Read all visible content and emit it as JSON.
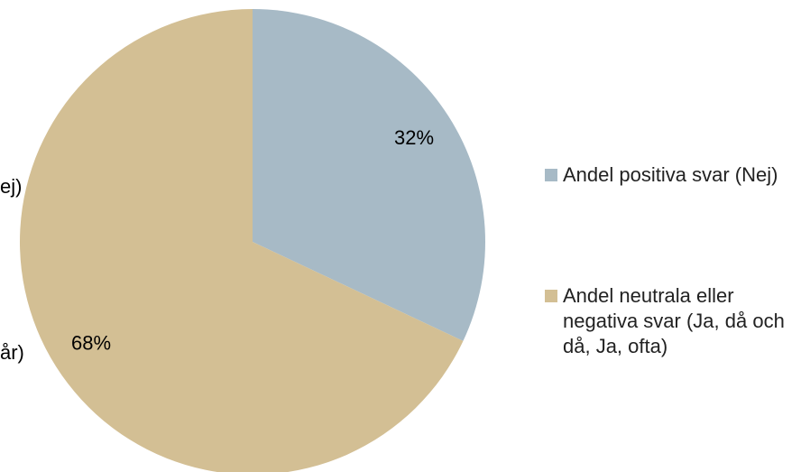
{
  "chart_data": {
    "type": "pie",
    "categories": [
      "Andel positiva svar (Nej)",
      "Andel neutrala eller negativa svar (Ja, då och då, Ja, ofta)"
    ],
    "values": [
      32,
      68
    ],
    "value_labels": [
      "32%",
      "68%"
    ],
    "colors": [
      "#a7bac6",
      "#d3bf94"
    ],
    "annotations": [
      "ej)",
      "år)"
    ],
    "legend": "right"
  }
}
